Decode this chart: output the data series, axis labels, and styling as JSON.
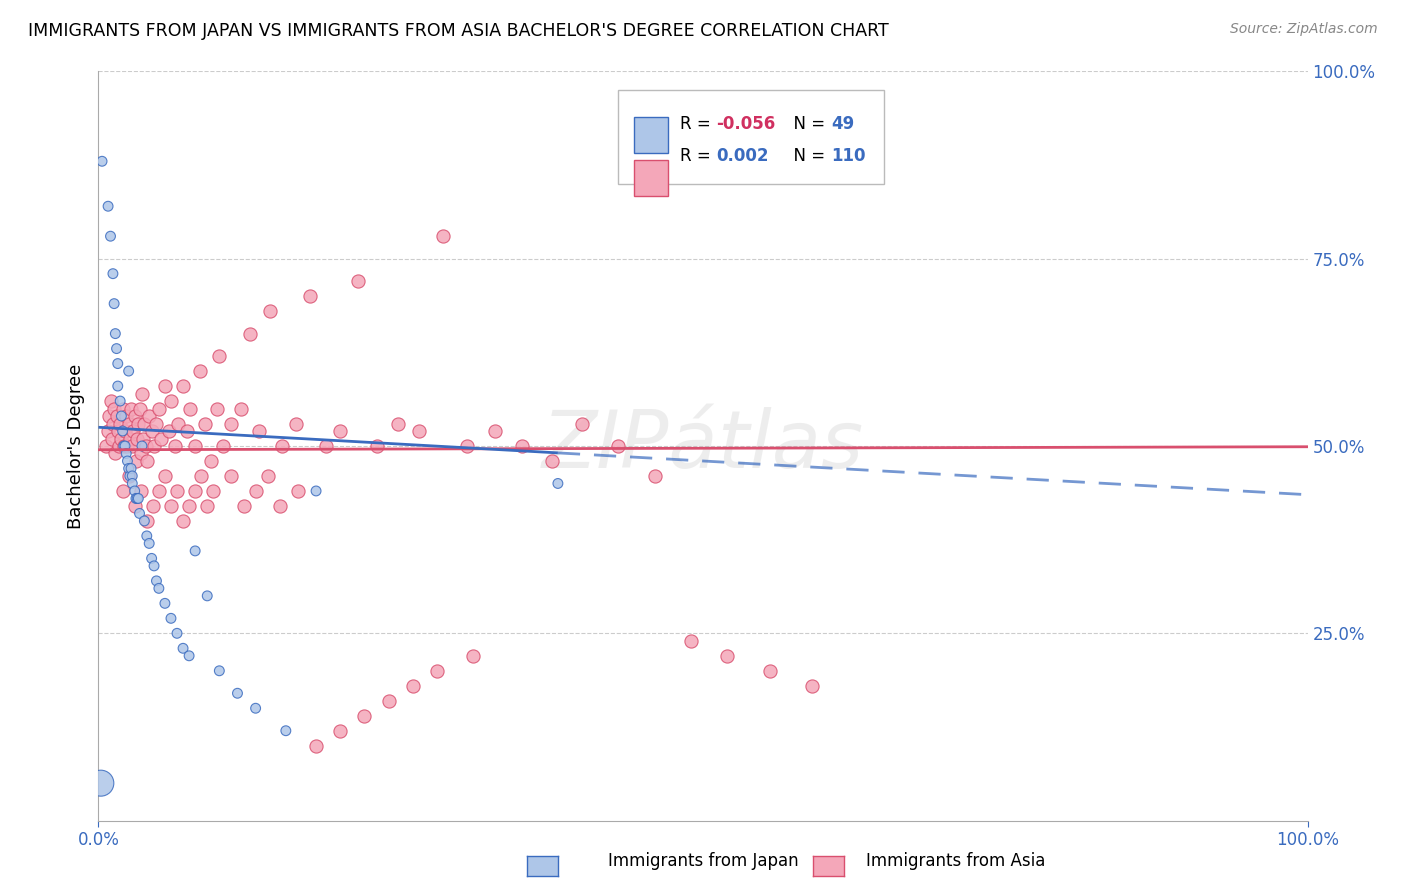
{
  "title": "IMMIGRANTS FROM JAPAN VS IMMIGRANTS FROM ASIA BACHELOR'S DEGREE CORRELATION CHART",
  "source": "Source: ZipAtlas.com",
  "ylabel": "Bachelor's Degree",
  "color_blue": "#aec6e8",
  "color_pink": "#f4a7b9",
  "line_blue": "#3a6bbf",
  "line_pink": "#d94f6e",
  "japan_x": [
    0.003,
    0.008,
    0.01,
    0.012,
    0.013,
    0.014,
    0.015,
    0.016,
    0.016,
    0.018,
    0.019,
    0.02,
    0.021,
    0.022,
    0.023,
    0.024,
    0.025,
    0.026,
    0.027,
    0.028,
    0.028,
    0.03,
    0.031,
    0.032,
    0.033,
    0.034,
    0.036,
    0.038,
    0.04,
    0.042,
    0.044,
    0.046,
    0.048,
    0.05,
    0.055,
    0.06,
    0.065,
    0.07,
    0.075,
    0.08,
    0.09,
    0.1,
    0.115,
    0.13,
    0.155,
    0.18,
    0.38,
    0.002,
    0.025
  ],
  "japan_y": [
    0.88,
    0.82,
    0.78,
    0.73,
    0.69,
    0.65,
    0.63,
    0.61,
    0.58,
    0.56,
    0.54,
    0.52,
    0.5,
    0.5,
    0.49,
    0.48,
    0.47,
    0.46,
    0.47,
    0.46,
    0.45,
    0.44,
    0.43,
    0.43,
    0.43,
    0.41,
    0.5,
    0.4,
    0.38,
    0.37,
    0.35,
    0.34,
    0.32,
    0.31,
    0.29,
    0.27,
    0.25,
    0.23,
    0.22,
    0.36,
    0.3,
    0.2,
    0.17,
    0.15,
    0.12,
    0.44,
    0.45,
    0.05,
    0.6
  ],
  "japan_size": [
    50,
    50,
    50,
    50,
    50,
    50,
    50,
    50,
    50,
    50,
    50,
    50,
    50,
    50,
    50,
    50,
    50,
    50,
    50,
    50,
    50,
    50,
    50,
    50,
    50,
    50,
    50,
    50,
    50,
    50,
    50,
    50,
    50,
    50,
    50,
    50,
    50,
    50,
    50,
    50,
    50,
    50,
    50,
    50,
    50,
    50,
    50,
    350,
    50
  ],
  "asia_x": [
    0.006,
    0.008,
    0.009,
    0.01,
    0.011,
    0.012,
    0.013,
    0.014,
    0.015,
    0.016,
    0.017,
    0.018,
    0.019,
    0.02,
    0.021,
    0.022,
    0.023,
    0.024,
    0.025,
    0.026,
    0.027,
    0.028,
    0.029,
    0.03,
    0.031,
    0.032,
    0.033,
    0.034,
    0.035,
    0.036,
    0.037,
    0.038,
    0.039,
    0.04,
    0.042,
    0.044,
    0.046,
    0.048,
    0.05,
    0.052,
    0.055,
    0.058,
    0.06,
    0.063,
    0.066,
    0.07,
    0.073,
    0.076,
    0.08,
    0.084,
    0.088,
    0.093,
    0.098,
    0.103,
    0.11,
    0.118,
    0.125,
    0.133,
    0.142,
    0.152,
    0.163,
    0.175,
    0.188,
    0.2,
    0.215,
    0.23,
    0.248,
    0.265,
    0.285,
    0.305,
    0.328,
    0.35,
    0.375,
    0.4,
    0.43,
    0.46,
    0.49,
    0.52,
    0.555,
    0.59,
    0.02,
    0.025,
    0.03,
    0.035,
    0.04,
    0.045,
    0.05,
    0.055,
    0.06,
    0.065,
    0.07,
    0.075,
    0.08,
    0.085,
    0.09,
    0.095,
    0.1,
    0.11,
    0.12,
    0.13,
    0.14,
    0.15,
    0.165,
    0.18,
    0.2,
    0.22,
    0.24,
    0.26,
    0.28,
    0.31
  ],
  "asia_y": [
    0.5,
    0.52,
    0.54,
    0.56,
    0.51,
    0.53,
    0.55,
    0.49,
    0.54,
    0.52,
    0.5,
    0.53,
    0.51,
    0.55,
    0.5,
    0.52,
    0.54,
    0.5,
    0.53,
    0.51,
    0.55,
    0.5,
    0.52,
    0.54,
    0.48,
    0.51,
    0.53,
    0.55,
    0.49,
    0.57,
    0.51,
    0.53,
    0.5,
    0.48,
    0.54,
    0.52,
    0.5,
    0.53,
    0.55,
    0.51,
    0.58,
    0.52,
    0.56,
    0.5,
    0.53,
    0.58,
    0.52,
    0.55,
    0.5,
    0.6,
    0.53,
    0.48,
    0.55,
    0.5,
    0.53,
    0.55,
    0.65,
    0.52,
    0.68,
    0.5,
    0.53,
    0.7,
    0.5,
    0.52,
    0.72,
    0.5,
    0.53,
    0.52,
    0.78,
    0.5,
    0.52,
    0.5,
    0.48,
    0.53,
    0.5,
    0.46,
    0.24,
    0.22,
    0.2,
    0.18,
    0.44,
    0.46,
    0.42,
    0.44,
    0.4,
    0.42,
    0.44,
    0.46,
    0.42,
    0.44,
    0.4,
    0.42,
    0.44,
    0.46,
    0.42,
    0.44,
    0.62,
    0.46,
    0.42,
    0.44,
    0.46,
    0.42,
    0.44,
    0.1,
    0.12,
    0.14,
    0.16,
    0.18,
    0.2,
    0.22
  ],
  "blue_line_x0": 0.0,
  "blue_line_x1": 1.0,
  "blue_line_y0": 0.525,
  "blue_line_y1": 0.435,
  "blue_line_solid_end": 0.38,
  "pink_line_y": 0.497,
  "xlim": [
    0.0,
    1.0
  ],
  "ylim": [
    0.0,
    1.0
  ]
}
